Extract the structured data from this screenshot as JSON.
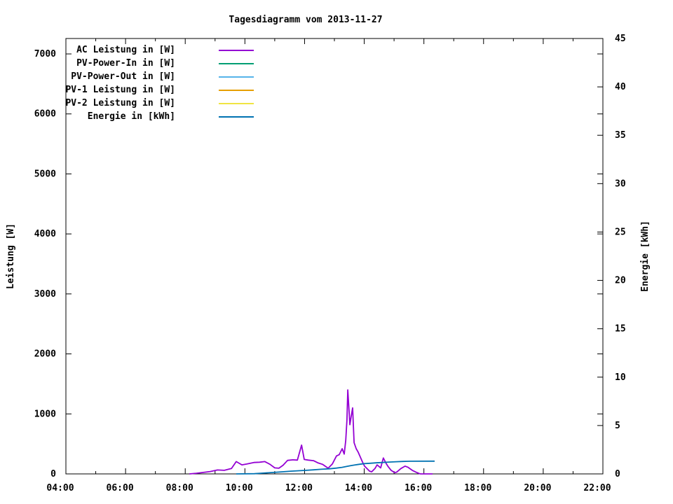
{
  "page": {
    "background": "#ffffff"
  },
  "chart_data": {
    "type": "line",
    "title": "Tagesdiagramm vom 2013-11-27",
    "grid": false,
    "legend_position": "top-left-inside",
    "x_axis": {
      "range_hours": [
        4,
        22
      ],
      "tick_hours": [
        4,
        6,
        8,
        10,
        12,
        14,
        16,
        18,
        20,
        22
      ],
      "tick_labels": [
        "04:00",
        "06:00",
        "08:00",
        "10:00",
        "12:00",
        "14:00",
        "16:00",
        "18:00",
        "20:00",
        "22:00"
      ],
      "minor_tick_every_hours": 1
    },
    "y_left": {
      "label": "Leistung [W]",
      "ticks": [
        0,
        1000,
        2000,
        3000,
        4000,
        5000,
        6000,
        7000
      ],
      "range": [
        0,
        7257
      ]
    },
    "y_right": {
      "label": "Energie [kWh]",
      "ticks": [
        0,
        5,
        10,
        15,
        20,
        25,
        30,
        35,
        40,
        45
      ],
      "range": [
        0,
        45
      ]
    },
    "series": [
      {
        "name": "AC Leistung in [W]",
        "color": "#9400d3",
        "axis": "left",
        "points": [
          [
            8.14,
            0
          ],
          [
            8.37,
            10
          ],
          [
            8.84,
            40
          ],
          [
            9.08,
            65
          ],
          [
            9.31,
            60
          ],
          [
            9.55,
            90
          ],
          [
            9.71,
            205
          ],
          [
            9.9,
            150
          ],
          [
            10.06,
            165
          ],
          [
            10.3,
            190
          ],
          [
            10.49,
            195
          ],
          [
            10.67,
            205
          ],
          [
            10.84,
            160
          ],
          [
            11.0,
            100
          ],
          [
            11.14,
            95
          ],
          [
            11.28,
            145
          ],
          [
            11.43,
            225
          ],
          [
            11.61,
            235
          ],
          [
            11.76,
            230
          ],
          [
            11.9,
            480
          ],
          [
            11.99,
            240
          ],
          [
            12.13,
            230
          ],
          [
            12.3,
            220
          ],
          [
            12.44,
            185
          ],
          [
            12.6,
            160
          ],
          [
            12.79,
            95
          ],
          [
            12.93,
            165
          ],
          [
            13.07,
            300
          ],
          [
            13.16,
            320
          ],
          [
            13.26,
            420
          ],
          [
            13.33,
            330
          ],
          [
            13.38,
            560
          ],
          [
            13.42,
            900
          ],
          [
            13.45,
            1400
          ],
          [
            13.49,
            1050
          ],
          [
            13.52,
            820
          ],
          [
            13.56,
            950
          ],
          [
            13.61,
            1100
          ],
          [
            13.66,
            520
          ],
          [
            13.73,
            420
          ],
          [
            13.8,
            360
          ],
          [
            13.87,
            280
          ],
          [
            13.94,
            200
          ],
          [
            14.01,
            130
          ],
          [
            14.18,
            45
          ],
          [
            14.25,
            35
          ],
          [
            14.36,
            90
          ],
          [
            14.43,
            150
          ],
          [
            14.55,
            100
          ],
          [
            14.64,
            265
          ],
          [
            14.74,
            170
          ],
          [
            14.79,
            130
          ],
          [
            14.9,
            60
          ],
          [
            15.02,
            20
          ],
          [
            15.09,
            30
          ],
          [
            15.23,
            90
          ],
          [
            15.37,
            130
          ],
          [
            15.47,
            110
          ],
          [
            15.61,
            60
          ],
          [
            15.73,
            30
          ],
          [
            15.85,
            5
          ],
          [
            15.89,
            0
          ],
          [
            16.29,
            0
          ]
        ]
      },
      {
        "name": "PV-Power-In in [W]",
        "color": "#009e73",
        "axis": "left",
        "points": []
      },
      {
        "name": "PV-Power-Out in [W]",
        "color": "#56b4e9",
        "axis": "left",
        "points": []
      },
      {
        "name": "PV-1 Leistung in [W]",
        "color": "#e69f00",
        "axis": "left",
        "points": []
      },
      {
        "name": "PV-2 Leistung in [W]",
        "color": "#f0e442",
        "axis": "left",
        "points": []
      },
      {
        "name": "Energie in [kWh]",
        "color": "#0072b2",
        "axis": "right",
        "points": [
          [
            9.71,
            0
          ],
          [
            10.32,
            0.02
          ],
          [
            10.6,
            0.08
          ],
          [
            10.96,
            0.15
          ],
          [
            11.26,
            0.22
          ],
          [
            11.54,
            0.28
          ],
          [
            11.85,
            0.33
          ],
          [
            12.01,
            0.36
          ],
          [
            12.3,
            0.42
          ],
          [
            12.55,
            0.48
          ],
          [
            12.84,
            0.53
          ],
          [
            13.07,
            0.6
          ],
          [
            13.26,
            0.68
          ],
          [
            13.42,
            0.78
          ],
          [
            13.56,
            0.86
          ],
          [
            13.7,
            0.93
          ],
          [
            13.85,
            1.0
          ],
          [
            14.01,
            1.06
          ],
          [
            14.2,
            1.1
          ],
          [
            14.39,
            1.14
          ],
          [
            14.6,
            1.18
          ],
          [
            14.83,
            1.22
          ],
          [
            15.07,
            1.26
          ],
          [
            15.3,
            1.29
          ],
          [
            15.54,
            1.31
          ],
          [
            16.36,
            1.32
          ]
        ]
      }
    ]
  }
}
